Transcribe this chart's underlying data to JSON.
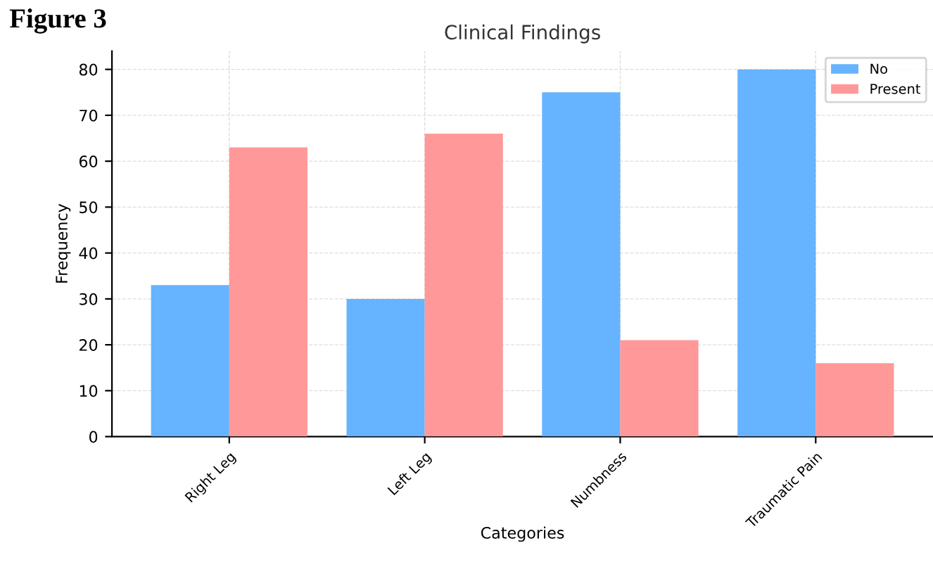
{
  "chart_data": {
    "type": "bar",
    "title": "Clinical Findings",
    "xlabel": "Categories",
    "ylabel": "Frequency",
    "annotations": [
      "Figure 3"
    ],
    "categories": [
      "Right Leg",
      "Left Leg",
      "Numbness",
      "Traumatic Pain"
    ],
    "series": [
      {
        "name": "No",
        "color": "#66b3ff",
        "values": [
          33,
          30,
          75,
          80
        ]
      },
      {
        "name": "Present",
        "color": "#ff9999",
        "values": [
          63,
          66,
          21,
          16
        ]
      }
    ],
    "ylim": [
      0,
      84
    ],
    "yticks": [
      0,
      10,
      20,
      30,
      40,
      50,
      60,
      70,
      80
    ],
    "grid": true,
    "legend": "top right"
  }
}
